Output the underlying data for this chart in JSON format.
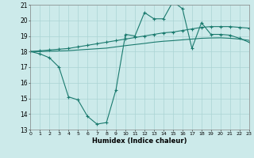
{
  "xlabel": "Humidex (Indice chaleur)",
  "background_color": "#cceaea",
  "line_color": "#1a7a6e",
  "grid_color": "#aad4d4",
  "xmin": 0,
  "xmax": 23,
  "ymin": 13,
  "ymax": 21,
  "yticks": [
    13,
    14,
    15,
    16,
    17,
    18,
    19,
    20,
    21
  ],
  "xticks": [
    0,
    1,
    2,
    3,
    4,
    5,
    6,
    7,
    8,
    9,
    10,
    11,
    12,
    13,
    14,
    15,
    16,
    17,
    18,
    19,
    20,
    21,
    22,
    23
  ],
  "line1_x": [
    0,
    1,
    2,
    3,
    4,
    5,
    6,
    7,
    8,
    9,
    10,
    11,
    12,
    13,
    14,
    15,
    16,
    17,
    18,
    19,
    20,
    21,
    22,
    23
  ],
  "line1_y": [
    18.0,
    17.85,
    17.6,
    17.0,
    15.1,
    14.9,
    13.85,
    13.35,
    13.45,
    15.55,
    19.1,
    19.0,
    20.5,
    20.1,
    20.1,
    21.2,
    20.75,
    18.2,
    19.85,
    19.1,
    19.1,
    19.05,
    18.85,
    18.6
  ],
  "line2_x": [
    0,
    1,
    2,
    3,
    4,
    5,
    6,
    7,
    8,
    9,
    10,
    11,
    12,
    13,
    14,
    15,
    16,
    17,
    18,
    19,
    20,
    21,
    22,
    23
  ],
  "line2_y": [
    18.0,
    18.05,
    18.1,
    18.15,
    18.2,
    18.3,
    18.4,
    18.5,
    18.6,
    18.7,
    18.8,
    18.9,
    19.0,
    19.1,
    19.2,
    19.25,
    19.35,
    19.45,
    19.55,
    19.6,
    19.6,
    19.6,
    19.55,
    19.5
  ],
  "line3_x": [
    0,
    1,
    2,
    3,
    4,
    5,
    6,
    7,
    8,
    9,
    10,
    11,
    12,
    13,
    14,
    15,
    16,
    17,
    18,
    19,
    20,
    21,
    22,
    23
  ],
  "line3_y": [
    18.0,
    18.0,
    18.02,
    18.04,
    18.06,
    18.1,
    18.14,
    18.18,
    18.22,
    18.3,
    18.38,
    18.45,
    18.52,
    18.6,
    18.66,
    18.7,
    18.75,
    18.8,
    18.85,
    18.87,
    18.88,
    18.85,
    18.8,
    18.72
  ]
}
